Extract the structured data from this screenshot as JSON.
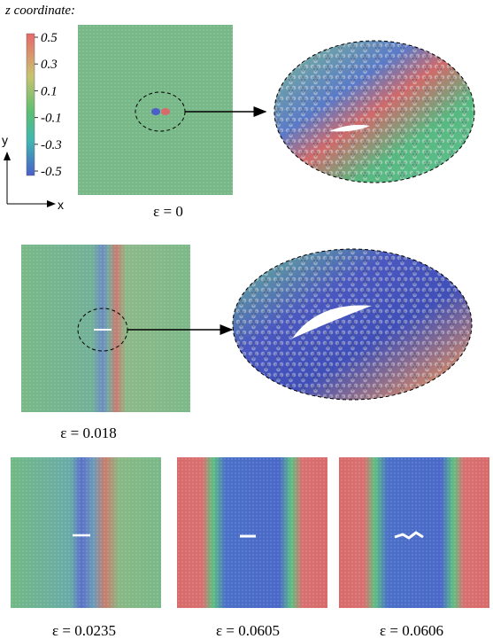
{
  "colorbar": {
    "title": "z coordinate:",
    "ticks": [
      0.5,
      0.3,
      0.1,
      -0.1,
      -0.3,
      -0.5
    ]
  },
  "axes": {
    "x": "x",
    "y": "y"
  },
  "panels": [
    {
      "caption": "ε = 0"
    },
    {
      "caption": "ε = 0.018"
    },
    {
      "caption": "ε = 0.0235"
    },
    {
      "caption": "ε = 0.0605"
    },
    {
      "caption": "ε = 0.0606"
    }
  ]
}
